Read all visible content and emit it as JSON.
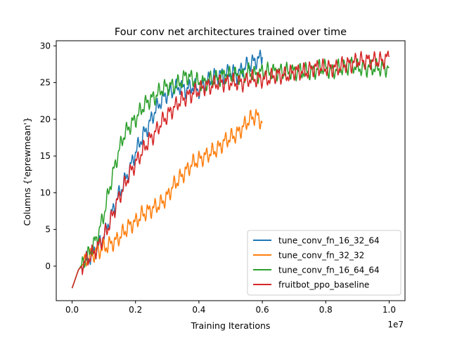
{
  "chart_data": {
    "type": "line",
    "title": "Four conv net architectures trained over time",
    "xlabel": "Training Iterations",
    "ylabel": "Columns {'eprewmean'}",
    "x_offset_label": "1e7",
    "xlim": [
      -0.05,
      1.05
    ],
    "ylim": [
      -4.7,
      30.7
    ],
    "x_ticks": [
      0.0,
      0.2,
      0.4,
      0.6,
      0.8,
      1.0
    ],
    "x_tick_labels": [
      "0.0",
      "0.2",
      "0.4",
      "0.6",
      "0.8",
      "1.0"
    ],
    "y_ticks": [
      0,
      5,
      10,
      15,
      20,
      25,
      30
    ],
    "y_tick_labels": [
      "0",
      "5",
      "10",
      "15",
      "20",
      "25",
      "30"
    ],
    "grid": false,
    "legend_position": "lower-right",
    "series": [
      {
        "name": "tune_conv_fn_16_32_64",
        "color": "#1f77b4",
        "points": [
          [
            0.0,
            -3.0
          ],
          [
            0.02,
            -0.5
          ],
          [
            0.05,
            1.0
          ],
          [
            0.08,
            2.5
          ],
          [
            0.1,
            4.0
          ],
          [
            0.12,
            6.5
          ],
          [
            0.14,
            9.0
          ],
          [
            0.16,
            11.0
          ],
          [
            0.18,
            13.0
          ],
          [
            0.2,
            15.5
          ],
          [
            0.22,
            17.5
          ],
          [
            0.24,
            19.0
          ],
          [
            0.26,
            21.0
          ],
          [
            0.28,
            22.5
          ],
          [
            0.3,
            23.5
          ],
          [
            0.32,
            24.0
          ],
          [
            0.34,
            24.5
          ],
          [
            0.36,
            24.0
          ],
          [
            0.38,
            24.5
          ],
          [
            0.4,
            24.0
          ],
          [
            0.42,
            25.0
          ],
          [
            0.44,
            25.5
          ],
          [
            0.46,
            26.0
          ],
          [
            0.48,
            26.0
          ],
          [
            0.5,
            26.5
          ],
          [
            0.52,
            26.0
          ],
          [
            0.54,
            27.0
          ],
          [
            0.56,
            27.5
          ],
          [
            0.58,
            28.0
          ],
          [
            0.6,
            28.5
          ]
        ]
      },
      {
        "name": "tune_conv_fn_32_32",
        "color": "#ff7f0e",
        "points": [
          [
            0.0,
            -3.0
          ],
          [
            0.02,
            -0.5
          ],
          [
            0.05,
            1.0
          ],
          [
            0.08,
            2.0
          ],
          [
            0.1,
            2.5
          ],
          [
            0.12,
            3.0
          ],
          [
            0.14,
            3.5
          ],
          [
            0.16,
            4.5
          ],
          [
            0.18,
            5.5
          ],
          [
            0.2,
            6.0
          ],
          [
            0.22,
            7.0
          ],
          [
            0.24,
            7.5
          ],
          [
            0.26,
            8.0
          ],
          [
            0.28,
            8.5
          ],
          [
            0.3,
            9.5
          ],
          [
            0.32,
            11.0
          ],
          [
            0.34,
            12.0
          ],
          [
            0.36,
            13.0
          ],
          [
            0.38,
            14.0
          ],
          [
            0.4,
            14.5
          ],
          [
            0.42,
            15.0
          ],
          [
            0.44,
            15.5
          ],
          [
            0.46,
            16.0
          ],
          [
            0.48,
            17.0
          ],
          [
            0.5,
            17.5
          ],
          [
            0.52,
            18.0
          ],
          [
            0.54,
            19.0
          ],
          [
            0.56,
            20.0
          ],
          [
            0.58,
            20.5
          ],
          [
            0.6,
            19.5
          ]
        ]
      },
      {
        "name": "tune_conv_fn_16_64_64",
        "color": "#2ca02c",
        "points": [
          [
            0.0,
            -3.0
          ],
          [
            0.02,
            -0.5
          ],
          [
            0.05,
            1.5
          ],
          [
            0.08,
            4.0
          ],
          [
            0.1,
            7.0
          ],
          [
            0.12,
            11.0
          ],
          [
            0.14,
            14.5
          ],
          [
            0.16,
            17.5
          ],
          [
            0.18,
            19.0
          ],
          [
            0.2,
            20.0
          ],
          [
            0.22,
            21.5
          ],
          [
            0.24,
            22.5
          ],
          [
            0.26,
            23.0
          ],
          [
            0.28,
            24.0
          ],
          [
            0.3,
            24.5
          ],
          [
            0.32,
            24.5
          ],
          [
            0.34,
            25.0
          ],
          [
            0.36,
            26.0
          ],
          [
            0.38,
            25.5
          ],
          [
            0.4,
            25.0
          ],
          [
            0.42,
            25.0
          ],
          [
            0.44,
            25.5
          ],
          [
            0.46,
            25.5
          ],
          [
            0.48,
            26.0
          ],
          [
            0.5,
            26.0
          ],
          [
            0.52,
            26.0
          ],
          [
            0.54,
            26.0
          ],
          [
            0.56,
            26.5
          ],
          [
            0.58,
            26.0
          ],
          [
            0.6,
            26.5
          ],
          [
            0.62,
            26.5
          ],
          [
            0.64,
            26.5
          ],
          [
            0.66,
            26.5
          ],
          [
            0.68,
            26.5
          ],
          [
            0.7,
            26.5
          ],
          [
            0.72,
            26.5
          ],
          [
            0.74,
            26.5
          ],
          [
            0.76,
            26.5
          ],
          [
            0.78,
            27.0
          ],
          [
            0.8,
            27.0
          ],
          [
            0.82,
            26.5
          ],
          [
            0.84,
            27.0
          ],
          [
            0.86,
            27.0
          ],
          [
            0.88,
            27.5
          ],
          [
            0.9,
            27.0
          ],
          [
            0.92,
            27.0
          ],
          [
            0.94,
            27.0
          ],
          [
            0.96,
            27.0
          ],
          [
            0.98,
            27.0
          ],
          [
            1.0,
            27.0
          ]
        ]
      },
      {
        "name": "fruitbot_ppo_baseline",
        "color": "#d62728",
        "points": [
          [
            0.0,
            -3.0
          ],
          [
            0.02,
            -0.5
          ],
          [
            0.05,
            1.0
          ],
          [
            0.08,
            2.5
          ],
          [
            0.1,
            4.0
          ],
          [
            0.12,
            6.0
          ],
          [
            0.14,
            8.5
          ],
          [
            0.16,
            10.5
          ],
          [
            0.18,
            12.5
          ],
          [
            0.2,
            14.0
          ],
          [
            0.22,
            15.5
          ],
          [
            0.24,
            17.0
          ],
          [
            0.26,
            18.0
          ],
          [
            0.28,
            19.5
          ],
          [
            0.3,
            20.5
          ],
          [
            0.32,
            21.5
          ],
          [
            0.34,
            22.5
          ],
          [
            0.36,
            23.0
          ],
          [
            0.38,
            23.5
          ],
          [
            0.4,
            24.0
          ],
          [
            0.42,
            24.5
          ],
          [
            0.44,
            24.5
          ],
          [
            0.46,
            25.0
          ],
          [
            0.48,
            25.0
          ],
          [
            0.5,
            25.0
          ],
          [
            0.52,
            25.0
          ],
          [
            0.54,
            25.0
          ],
          [
            0.56,
            25.5
          ],
          [
            0.58,
            25.5
          ],
          [
            0.6,
            25.5
          ],
          [
            0.62,
            25.5
          ],
          [
            0.64,
            26.0
          ],
          [
            0.66,
            26.0
          ],
          [
            0.68,
            26.0
          ],
          [
            0.7,
            26.5
          ],
          [
            0.72,
            26.5
          ],
          [
            0.74,
            26.5
          ],
          [
            0.76,
            27.0
          ],
          [
            0.78,
            27.0
          ],
          [
            0.8,
            27.0
          ],
          [
            0.82,
            27.0
          ],
          [
            0.84,
            27.0
          ],
          [
            0.86,
            27.5
          ],
          [
            0.88,
            27.5
          ],
          [
            0.9,
            28.0
          ],
          [
            0.92,
            28.0
          ],
          [
            0.94,
            28.0
          ],
          [
            0.96,
            28.0
          ],
          [
            0.98,
            28.0
          ],
          [
            1.0,
            28.5
          ]
        ]
      }
    ]
  }
}
